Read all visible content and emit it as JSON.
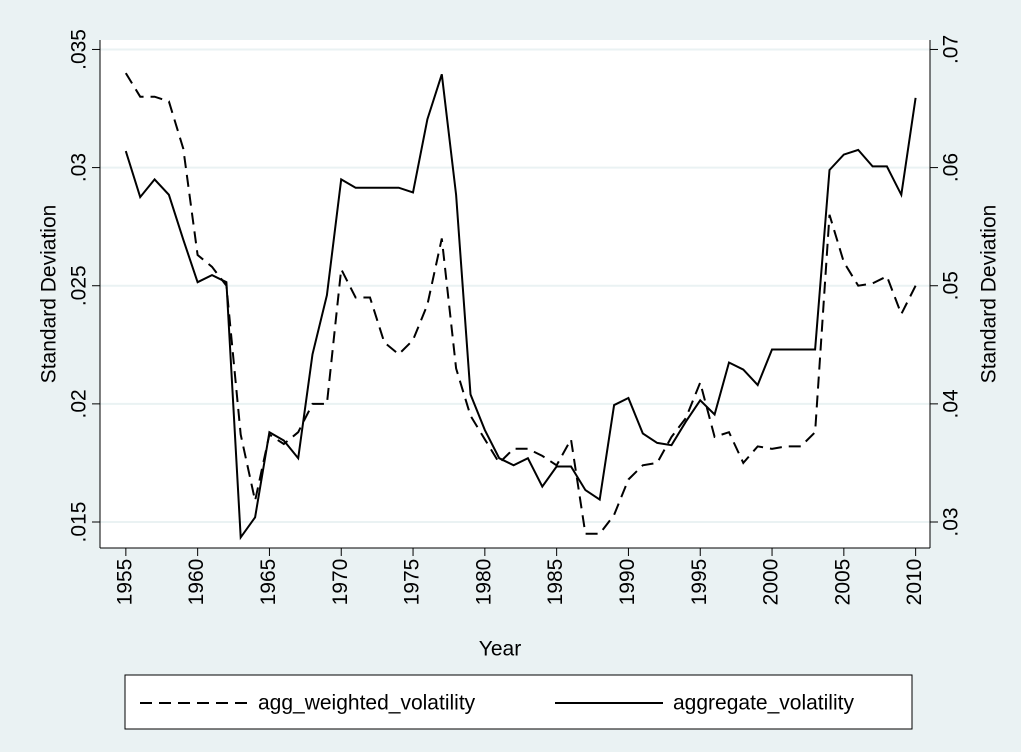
{
  "chart_data": {
    "type": "line",
    "xlabel": "Year",
    "ylabel": "Standard Deviation",
    "y2label": "Standard Deviation",
    "x": [
      1955,
      1956,
      1957,
      1958,
      1959,
      1960,
      1961,
      1962,
      1963,
      1964,
      1965,
      1966,
      1967,
      1968,
      1969,
      1970,
      1971,
      1972,
      1973,
      1974,
      1975,
      1976,
      1977,
      1978,
      1979,
      1980,
      1981,
      1982,
      1983,
      1984,
      1985,
      1986,
      1987,
      1988,
      1989,
      1990,
      1991,
      1992,
      1993,
      1994,
      1995,
      1996,
      1997,
      1998,
      1999,
      2000,
      2001,
      2002,
      2003,
      2004,
      2005,
      2006,
      2007,
      2008,
      2009,
      2010
    ],
    "xlim": [
      1953.2,
      2011
    ],
    "xticks": [
      1955,
      1960,
      1965,
      1970,
      1975,
      1980,
      1985,
      1990,
      1995,
      2000,
      2005,
      2010
    ],
    "ylim": [
      0.0139,
      0.0354
    ],
    "yticks": [
      {
        "value": 0.015,
        "label": ".015"
      },
      {
        "value": 0.02,
        "label": ".02"
      },
      {
        "value": 0.025,
        "label": ".025"
      },
      {
        "value": 0.03,
        "label": ".03"
      },
      {
        "value": 0.035,
        "label": ".035"
      }
    ],
    "y2lim": [
      0.0278,
      0.0708
    ],
    "y2ticks": [
      {
        "value": 0.03,
        "label": ".03"
      },
      {
        "value": 0.04,
        "label": ".04"
      },
      {
        "value": 0.05,
        "label": ".05"
      },
      {
        "value": 0.06,
        "label": ".06"
      },
      {
        "value": 0.07,
        "label": ".07"
      }
    ],
    "grid": true,
    "series": [
      {
        "name": "agg_weighted_volatility",
        "color": "#000000",
        "dashed": true,
        "values": [
          0.034,
          0.033,
          0.033,
          0.0328,
          0.0308,
          0.0263,
          0.0258,
          0.025,
          0.0187,
          0.0159,
          0.0187,
          0.0183,
          0.0188,
          0.02,
          0.02,
          0.0257,
          0.0245,
          0.0245,
          0.0226,
          0.0221,
          0.0227,
          0.0242,
          0.027,
          0.0215,
          0.0195,
          0.0185,
          0.0175,
          0.0181,
          0.0181,
          0.0178,
          0.0174,
          0.0185,
          0.0145,
          0.0145,
          0.0153,
          0.0168,
          0.0174,
          0.0175,
          0.0186,
          0.0194,
          0.0209,
          0.0186,
          0.0188,
          0.0175,
          0.0182,
          0.0181,
          0.0182,
          0.0182,
          0.0188,
          0.028,
          0.026,
          0.025,
          0.0251,
          0.0254,
          0.0238,
          0.025
        ]
      },
      {
        "name": "aggregate_volatility",
        "color": "#000000",
        "dashed": false,
        "axis": "y2",
        "values": [
          0.0614,
          0.0575,
          0.059,
          0.0577,
          0.0539,
          0.0503,
          0.0509,
          0.0503,
          0.0287,
          0.0304,
          0.0376,
          0.0369,
          0.0354,
          0.0442,
          0.0492,
          0.059,
          0.0583,
          0.0583,
          0.0583,
          0.0583,
          0.0579,
          0.0641,
          0.0679,
          0.0577,
          0.0408,
          0.0378,
          0.0354,
          0.0348,
          0.0354,
          0.033,
          0.0347,
          0.0347,
          0.0327,
          0.0319,
          0.0399,
          0.0405,
          0.0375,
          0.0367,
          0.0365,
          0.0385,
          0.0403,
          0.0391,
          0.0435,
          0.0429,
          0.0416,
          0.0446,
          0.0446,
          0.0446,
          0.0446,
          0.0598,
          0.0611,
          0.0615,
          0.0601,
          0.0601,
          0.0577,
          0.0659
        ]
      }
    ]
  }
}
